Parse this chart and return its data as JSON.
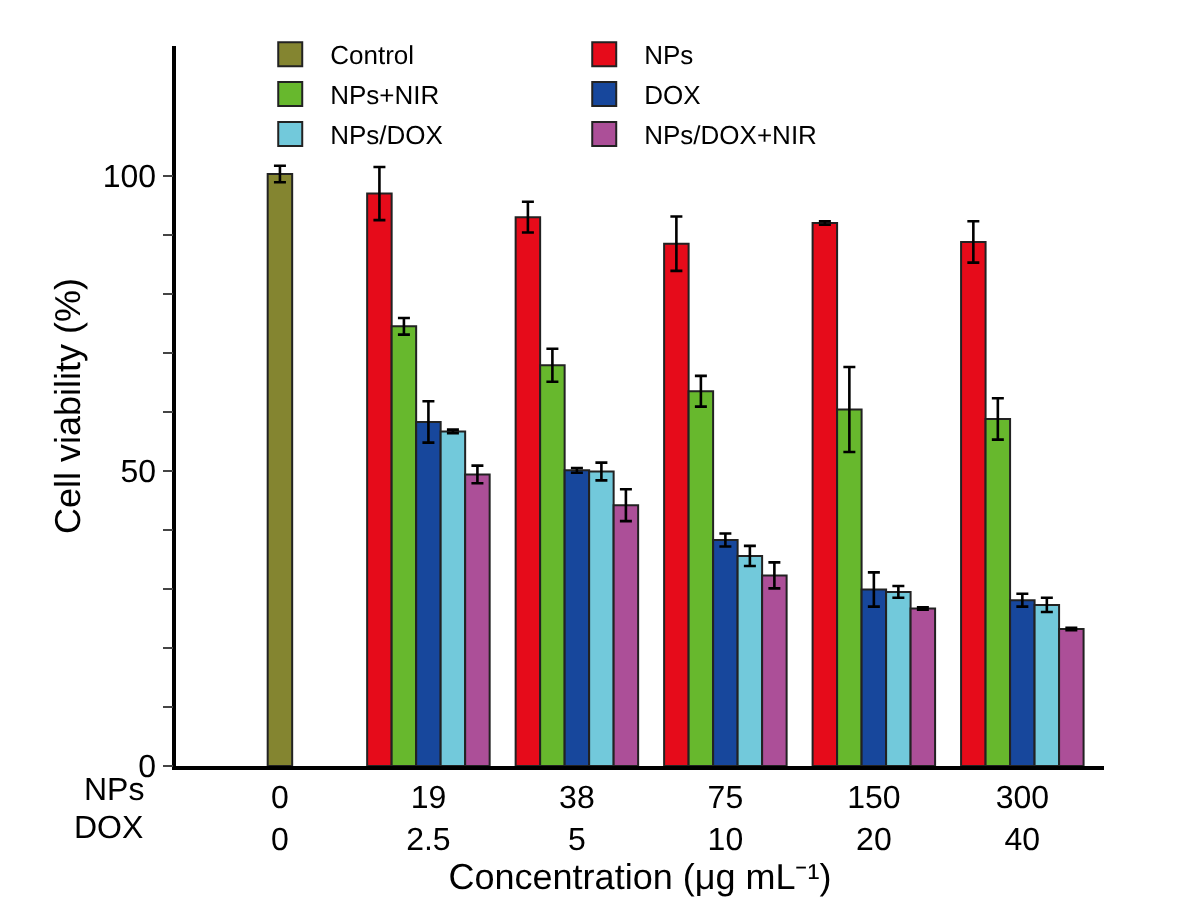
{
  "chart_data": {
    "type": "bar",
    "categories": [
      "0\n0",
      "19\n2.5",
      "38\n5",
      "75\n10",
      "150\n20",
      "300\n40"
    ],
    "xlabel": "Concentration (μg mL⁻¹)",
    "ylabel": "Cell viability (%)",
    "annotations": [
      "NPs",
      "DOX"
    ],
    "ylim": [
      0,
      122
    ],
    "yticks": [
      0,
      {
        "value": 10,
        "label": null
      },
      {
        "value": 20,
        "label": null
      },
      {
        "value": 30,
        "label": null
      },
      {
        "value": 40,
        "label": null
      },
      50,
      {
        "value": 60,
        "label": null
      },
      {
        "value": 70,
        "label": null
      },
      {
        "value": 80,
        "label": null
      },
      {
        "value": 90,
        "label": null
      },
      100
    ],
    "grid": false,
    "legend": "top",
    "series": [
      {
        "name": "Control",
        "color": "#848530",
        "values": [
          100.3,
          null,
          null,
          null,
          null,
          null
        ],
        "errors": [
          1.4,
          null,
          null,
          null,
          null,
          null
        ]
      },
      {
        "name": "NPs",
        "color": "#e60b1a",
        "values": [
          null,
          97.0,
          93.0,
          88.5,
          92.0,
          88.8
        ],
        "errors": [
          null,
          4.5,
          2.6,
          4.6,
          0.3,
          3.5
        ]
      },
      {
        "name": "NPs+NIR",
        "color": "#67b82d",
        "values": [
          null,
          74.5,
          67.9,
          63.5,
          60.4,
          58.8
        ],
        "errors": [
          null,
          1.4,
          2.8,
          2.6,
          7.2,
          3.5
        ]
      },
      {
        "name": "DOX",
        "color": "#17479c",
        "values": [
          null,
          58.3,
          50.1,
          38.3,
          29.9,
          28.1
        ],
        "errors": [
          null,
          3.5,
          0.4,
          1.1,
          2.9,
          1.1
        ]
      },
      {
        "name": "NPs/DOX",
        "color": "#72c9db",
        "values": [
          null,
          56.7,
          49.9,
          35.6,
          29.5,
          27.3
        ],
        "errors": [
          null,
          0.3,
          1.5,
          1.7,
          1.0,
          1.2
        ]
      },
      {
        "name": "NPs/DOX+NIR",
        "color": "#ac4f98",
        "values": [
          null,
          49.4,
          44.2,
          32.3,
          26.7,
          23.2
        ],
        "errors": [
          null,
          1.5,
          2.7,
          2.2,
          0.2,
          0.2
        ]
      }
    ]
  }
}
